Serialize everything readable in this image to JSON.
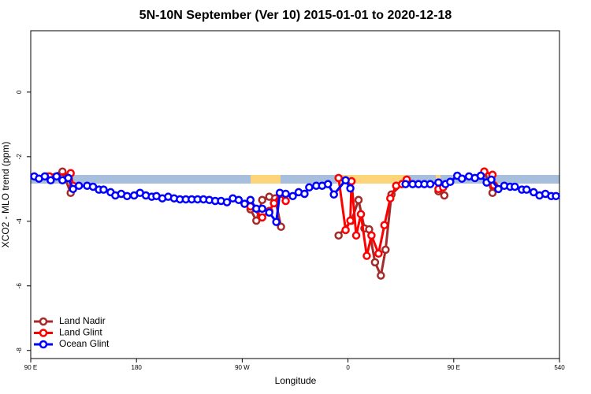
{
  "chart_data": {
    "type": "line",
    "title": "5N-10N September (Ver 10)   2015-01-01 to 2020-12-18",
    "x_label": "Longitude",
    "y_label": "XCO2 - MLO trend (ppm)",
    "xlim": [
      90,
      540
    ],
    "xticks": [
      {
        "value": 90,
        "label": "90 E"
      },
      180,
      {
        "value": 270,
        "label": "90 W"
      },
      {
        "value": 360,
        "label": "0"
      },
      {
        "value": 450,
        "label": "90 E"
      },
      540
    ],
    "ylim": [
      -8.25,
      1.9
    ],
    "yticks": [
      0,
      -2,
      -4,
      -6,
      -8
    ],
    "legend": "bottom-left",
    "series": [
      {
        "name": "Land Nadir",
        "color": "#a52a2a",
        "x": [
          104,
          117,
          124,
          126,
          null,
          277,
          282,
          287,
          293,
          298,
          303,
          null,
          352,
          363,
          369,
          374,
          378,
          383,
          388,
          392,
          397,
          410,
          null,
          437,
          442,
          null,
          476,
          483,
          485
        ],
        "values": [
          -2.61,
          -2.46,
          -3.12,
          -2.95,
          null,
          -3.63,
          -3.98,
          -3.34,
          -3.24,
          -3.29,
          -4.17,
          null,
          -4.44,
          -3.98,
          -3.34,
          -4.22,
          -4.25,
          -5.27,
          -5.68,
          -4.88,
          -3.17,
          -2.71,
          null,
          -3.07,
          -3.2,
          null,
          -2.46,
          -3.12,
          -2.93
        ]
      },
      {
        "name": "Land Glint",
        "color": "#ff0000",
        "x": [
          106,
          124,
          126,
          null,
          277,
          287,
          293,
          297,
          302,
          307,
          null,
          352,
          358,
          362,
          363,
          367,
          371,
          376,
          380,
          386,
          391,
          396,
          401,
          406,
          410,
          null,
          437,
          441,
          null,
          476,
          483,
          484
        ],
        "values": [
          -2.61,
          -2.51,
          -2.9,
          null,
          -3.54,
          -3.88,
          -3.68,
          -3.44,
          -3.15,
          -3.37,
          null,
          -2.66,
          -4.27,
          -3.98,
          -2.76,
          -4.44,
          -3.78,
          -5.07,
          -4.44,
          -5.0,
          -4.12,
          -3.29,
          -2.9,
          -2.85,
          -2.71,
          null,
          -3.0,
          -2.95,
          null,
          -2.46,
          -2.56,
          -2.88
        ]
      },
      {
        "name": "Ocean Glint",
        "color": "#0000ff",
        "x": [
          93,
          97,
          102,
          107,
          112,
          117,
          122,
          126,
          131,
          138,
          143,
          148,
          152,
          158,
          162,
          167,
          172,
          178,
          183,
          188,
          193,
          197,
          202,
          207,
          212,
          217,
          222,
          227,
          232,
          237,
          242,
          247,
          252,
          257,
          262,
          267,
          272,
          277,
          282,
          287,
          293,
          299,
          302,
          307,
          313,
          318,
          323,
          327,
          333,
          338,
          343,
          348,
          358,
          362,
          null,
          409,
          415,
          420,
          425,
          430,
          437,
          443,
          447,
          453,
          457,
          463,
          468,
          473,
          478,
          482,
          488,
          493,
          498,
          502,
          508,
          512,
          518,
          523,
          528,
          533,
          537
        ],
        "values": [
          -2.61,
          -2.68,
          -2.61,
          -2.73,
          -2.61,
          -2.73,
          -2.66,
          -3.0,
          -2.9,
          -2.9,
          -2.93,
          -3.02,
          -3.02,
          -3.1,
          -3.2,
          -3.15,
          -3.22,
          -3.2,
          -3.12,
          -3.2,
          -3.24,
          -3.22,
          -3.29,
          -3.24,
          -3.29,
          -3.32,
          -3.32,
          -3.32,
          -3.32,
          -3.32,
          -3.34,
          -3.37,
          -3.37,
          -3.41,
          -3.29,
          -3.34,
          -3.46,
          -3.34,
          -3.61,
          -3.61,
          -3.73,
          -4.02,
          -3.12,
          -3.15,
          -3.22,
          -3.1,
          -3.15,
          -2.95,
          -2.9,
          -2.9,
          -2.85,
          -3.17,
          -2.73,
          -2.98,
          null,
          -2.85,
          -2.85,
          -2.85,
          -2.85,
          -2.85,
          -2.8,
          -2.85,
          -2.78,
          -2.59,
          -2.68,
          -2.61,
          -2.66,
          -2.59,
          -2.8,
          -2.71,
          -3.0,
          -2.9,
          -2.93,
          -2.93,
          -3.02,
          -3.02,
          -3.1,
          -3.2,
          -3.15,
          -3.22,
          -3.22
        ]
      }
    ]
  }
}
